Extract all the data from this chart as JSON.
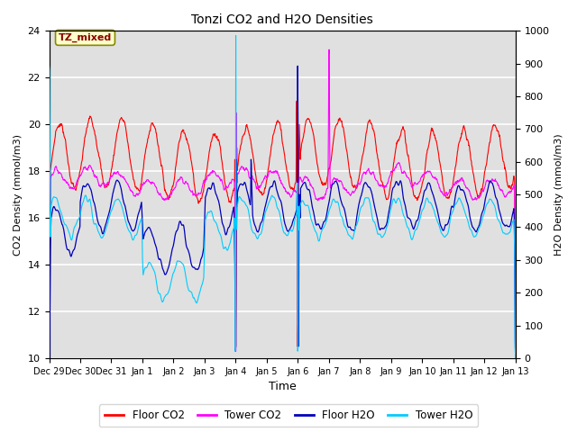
{
  "title": "Tonzi CO2 and H2O Densities",
  "xlabel": "Time",
  "ylabel_left": "CO2 Density (mmol/m3)",
  "ylabel_right": "H2O Density (mmol/m3)",
  "ylim_left": [
    10,
    24
  ],
  "ylim_right": [
    0,
    1000
  ],
  "yticks_left": [
    10,
    12,
    14,
    16,
    18,
    20,
    22,
    24
  ],
  "yticks_right": [
    0,
    100,
    200,
    300,
    400,
    500,
    600,
    700,
    800,
    900,
    1000
  ],
  "xtick_labels": [
    "Dec 29",
    "Dec 30",
    "Dec 31",
    "Jan 1",
    "Jan 2",
    "Jan 3",
    "Jan 4",
    "Jan 5",
    "Jan 6",
    "Jan 7",
    "Jan 8",
    "Jan 9",
    "Jan 10",
    "Jan 11",
    "Jan 12",
    "Jan 13"
  ],
  "annotation_text": "TZ_mixed",
  "colors": {
    "floor_co2": "#FF0000",
    "tower_co2": "#FF00FF",
    "floor_h2o": "#0000BB",
    "tower_h2o": "#00CCFF"
  },
  "legend_entries": [
    "Floor CO2",
    "Tower CO2",
    "Floor H2O",
    "Tower H2O"
  ],
  "background_color": "#E0E0E0",
  "n_points": 1440
}
